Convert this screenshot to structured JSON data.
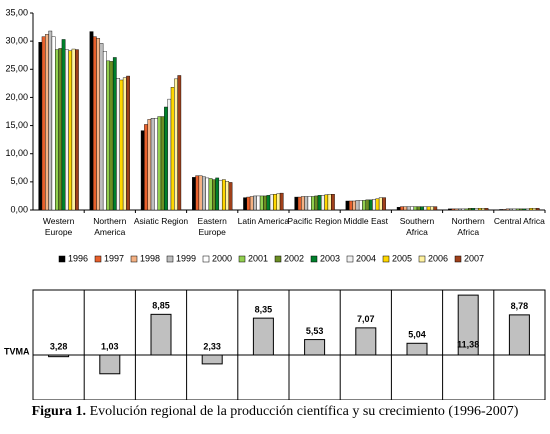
{
  "chart_data": [
    {
      "type": "bar",
      "categories": [
        "Western\nEurope",
        "Northern\nAmerica",
        "Asiatic Region",
        "Eastern\nEurope",
        "Latin America",
        "Pacific Region",
        "Middle East",
        "Southern\nAfrica",
        "Northern\nAfrica",
        "Central Africa"
      ],
      "ylim": [
        0,
        35
      ],
      "yticks": [
        {
          "value": 0,
          "label": "0,00"
        },
        {
          "value": 5,
          "label": "5,00"
        },
        {
          "value": 10,
          "label": "10,00"
        },
        {
          "value": 15,
          "label": "15,00"
        },
        {
          "value": 20,
          "label": "20,00"
        },
        {
          "value": 25,
          "label": "25,00"
        },
        {
          "value": 30,
          "label": "30,00"
        },
        {
          "value": 35,
          "label": "35,00"
        }
      ],
      "legend": "bottom",
      "series": [
        {
          "name": "1996",
          "color": "#000000",
          "values": [
            29.8,
            31.7,
            14.1,
            5.8,
            2.2,
            2.3,
            1.6,
            0.5,
            0.2,
            0.1
          ]
        },
        {
          "name": "1997",
          "color": "#e8602c",
          "values": [
            30.8,
            30.8,
            15.2,
            6.1,
            2.3,
            2.3,
            1.6,
            0.6,
            0.2,
            0.1
          ]
        },
        {
          "name": "1998",
          "color": "#f4b183",
          "values": [
            31.2,
            30.5,
            16.1,
            6.1,
            2.4,
            2.4,
            1.6,
            0.6,
            0.2,
            0.2
          ]
        },
        {
          "name": "1999",
          "color": "#bfbfbf",
          "values": [
            31.8,
            29.6,
            16.3,
            5.9,
            2.5,
            2.4,
            1.7,
            0.6,
            0.2,
            0.2
          ]
        },
        {
          "name": "2000",
          "color": "#ffffff",
          "values": [
            30.8,
            28.2,
            16.3,
            5.7,
            2.5,
            2.4,
            1.7,
            0.6,
            0.2,
            0.2
          ]
        },
        {
          "name": "2001",
          "color": "#92d050",
          "values": [
            28.5,
            26.5,
            16.6,
            5.6,
            2.5,
            2.4,
            1.7,
            0.6,
            0.2,
            0.2
          ]
        },
        {
          "name": "2002",
          "color": "#6b8e23",
          "values": [
            28.7,
            26.4,
            16.6,
            5.4,
            2.5,
            2.5,
            1.8,
            0.6,
            0.3,
            0.2
          ]
        },
        {
          "name": "2003",
          "color": "#00802b",
          "values": [
            30.3,
            27.1,
            18.3,
            5.7,
            2.6,
            2.6,
            1.8,
            0.6,
            0.3,
            0.2
          ]
        },
        {
          "name": "2004",
          "color": "#f2f2f2",
          "values": [
            28.5,
            23.4,
            19.7,
            5.3,
            2.7,
            2.6,
            1.9,
            0.6,
            0.3,
            0.2
          ]
        },
        {
          "name": "2005",
          "color": "#ffd700",
          "values": [
            28.3,
            23.1,
            21.8,
            5.4,
            2.8,
            2.7,
            2.0,
            0.6,
            0.3,
            0.3
          ]
        },
        {
          "name": "2006",
          "color": "#fff2a0",
          "values": [
            28.6,
            23.5,
            23.3,
            5.1,
            2.9,
            2.8,
            2.2,
            0.6,
            0.3,
            0.3
          ]
        },
        {
          "name": "2007",
          "color": "#a0401a",
          "values": [
            28.5,
            23.8,
            23.9,
            4.9,
            3.0,
            2.8,
            2.2,
            0.6,
            0.3,
            0.3
          ]
        }
      ]
    },
    {
      "type": "bar",
      "label": "TVMA",
      "color": "#c0c0c0",
      "baseline": 3.5,
      "values": [
        3.28,
        1.03,
        8.85,
        2.33,
        8.35,
        5.53,
        7.07,
        5.04,
        11.38,
        8.78
      ],
      "value_labels": [
        "3,28",
        "1,03",
        "8,85",
        "2,33",
        "8,35",
        "5,53",
        "7,07",
        "5,04",
        "11,38",
        "8,78"
      ]
    }
  ],
  "caption": {
    "label": "Figura 1.",
    "text": "Evolución regional de la producción científica y su crecimiento (1996-2007)"
  }
}
